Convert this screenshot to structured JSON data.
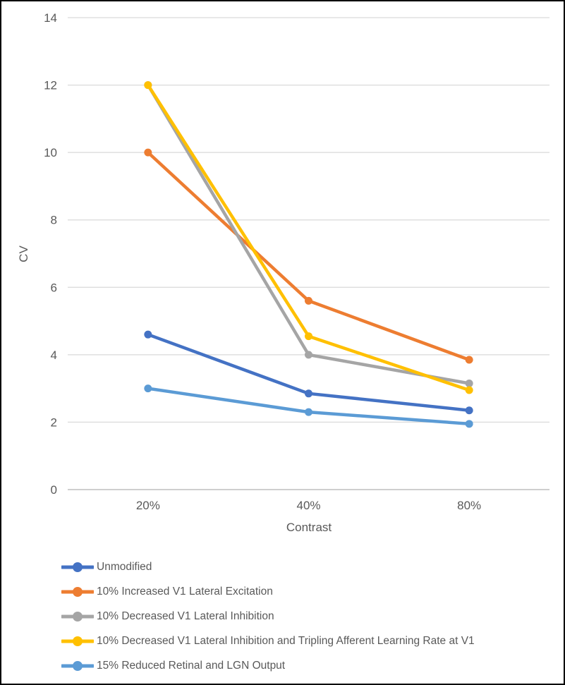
{
  "chart_data": {
    "type": "line",
    "categories": [
      "20%",
      "40%",
      "80%"
    ],
    "series": [
      {
        "name": "Unmodified",
        "color": "#4472C4",
        "values": [
          4.6,
          2.85,
          2.35
        ]
      },
      {
        "name": "10% Increased V1 Lateral Excitation",
        "color": "#ED7D31",
        "values": [
          10.0,
          5.6,
          3.85
        ]
      },
      {
        "name": "10% Decreased V1 Lateral Inhibition",
        "color": "#A5A5A5",
        "values": [
          12.0,
          4.0,
          3.15
        ]
      },
      {
        "name": "10% Decreased V1 Lateral Inhibition and Tripling Afferent Learning Rate at V1",
        "color": "#FFC000",
        "values": [
          12.0,
          4.55,
          2.95
        ]
      },
      {
        "name": "15% Reduced Retinal and LGN Output",
        "color": "#5B9BD5",
        "values": [
          3.0,
          2.3,
          1.95
        ]
      }
    ],
    "title": "",
    "xlabel": "Contrast",
    "ylabel": "CV",
    "ylim": [
      0,
      14
    ],
    "yticks": [
      0,
      2,
      4,
      6,
      8,
      10,
      12,
      14
    ],
    "grid": true,
    "legend_position": "bottom-left",
    "colors": {
      "gridline": "#D9D9D9",
      "axis_line": "#BFBFBF",
      "text": "#595959",
      "background": "#FFFFFF",
      "frame_border": "#000000"
    }
  }
}
